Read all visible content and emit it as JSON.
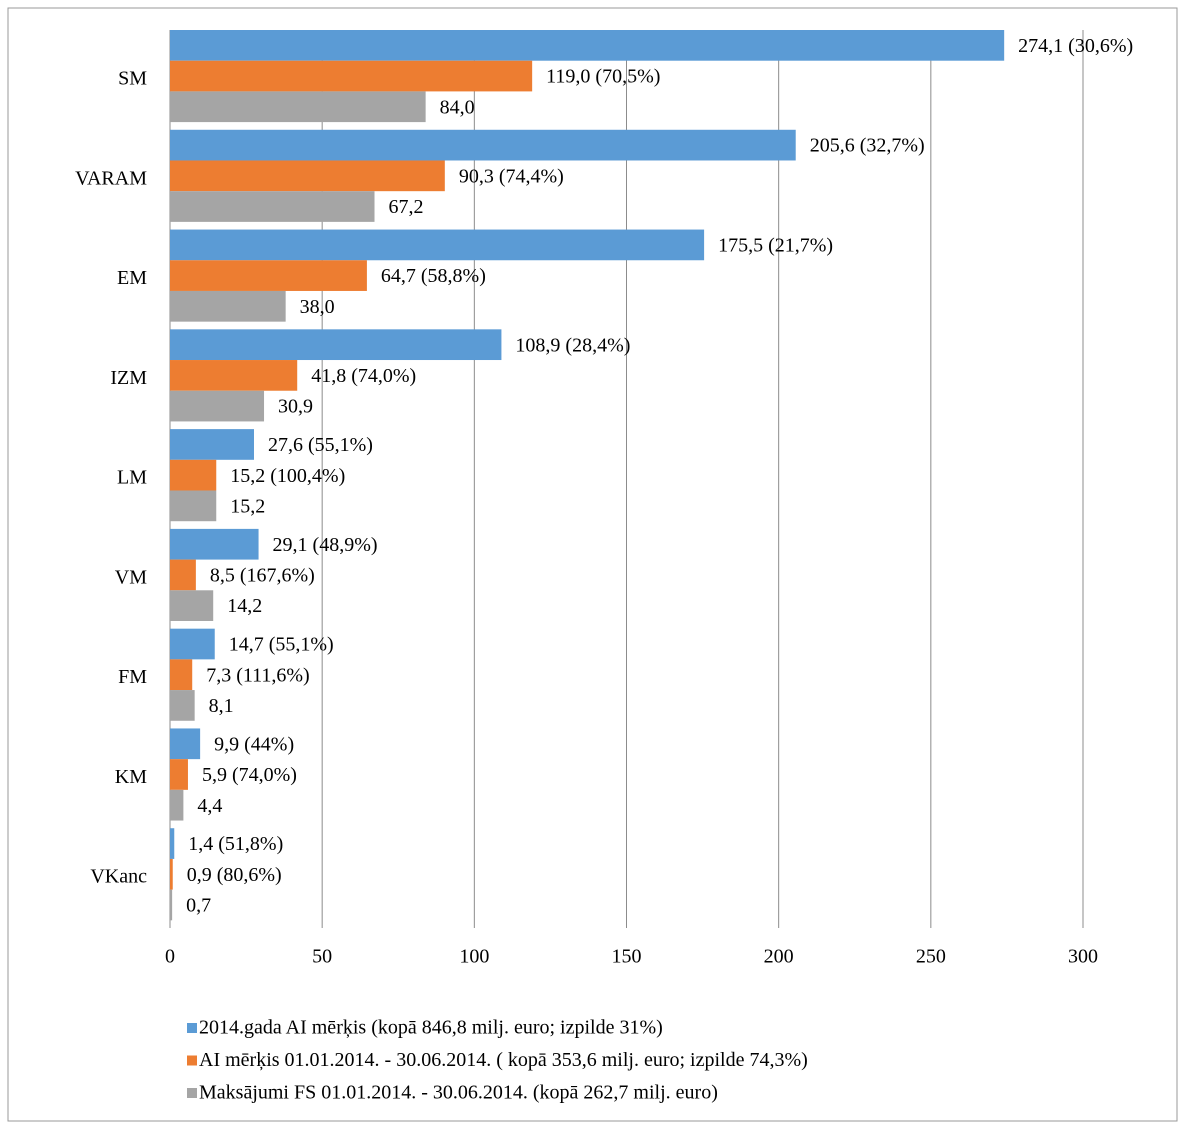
{
  "chart_data": {
    "type": "hbar",
    "categories": [
      "SM",
      "VARAM",
      "EM",
      "IZM",
      "LM",
      "VM",
      "FM",
      "KM",
      "VKanc"
    ],
    "series": [
      {
        "name": "2014.gada AI mērķis (kopā  846,8 milj. euro; izpilde 31%)",
        "color": "#5b9bd5",
        "values": [
          274.1,
          205.6,
          175.5,
          108.9,
          27.6,
          29.1,
          14.7,
          9.9,
          1.4
        ],
        "value_labels": [
          "274,1 (30,6%)",
          "205,6 (32,7%)",
          "175,5 (21,7%)",
          "108,9 (28,4%)",
          "27,6 (55,1%)",
          "29,1 (48,9%)",
          "14,7 (55,1%)",
          "9,9 (44%)",
          "1,4 (51,8%)"
        ]
      },
      {
        "name": "AI mērķis 01.01.2014. - 30.06.2014. ( kopā 353,6 milj. euro; izpilde 74,3%)",
        "color": "#ed7d31",
        "values": [
          119.0,
          90.3,
          64.7,
          41.8,
          15.2,
          8.5,
          7.3,
          5.9,
          0.9
        ],
        "value_labels": [
          "119,0 (70,5%)",
          "90,3 (74,4%)",
          "64,7 (58,8%)",
          "41,8 (74,0%)",
          "15,2 (100,4%)",
          "8,5 (167,6%)",
          "7,3 (111,6%)",
          "5,9 (74,0%)",
          "0,9 (80,6%)"
        ]
      },
      {
        "name": "Maksājumi FS 01.01.2014. - 30.06.2014. (kopā 262,7 milj. euro)",
        "color": "#a5a5a5",
        "values": [
          84.0,
          67.2,
          38.0,
          30.9,
          15.2,
          14.2,
          8.1,
          4.4,
          0.7
        ],
        "value_labels": [
          "84,0",
          "67,2",
          "38,0",
          "30,9",
          "15,2",
          "14,2",
          "8,1",
          "4,4",
          "0,7"
        ]
      }
    ],
    "xlim": [
      0,
      300
    ],
    "xticks": [
      0,
      50,
      100,
      150,
      200,
      250,
      300
    ],
    "grid": true,
    "legend": "bottom"
  }
}
